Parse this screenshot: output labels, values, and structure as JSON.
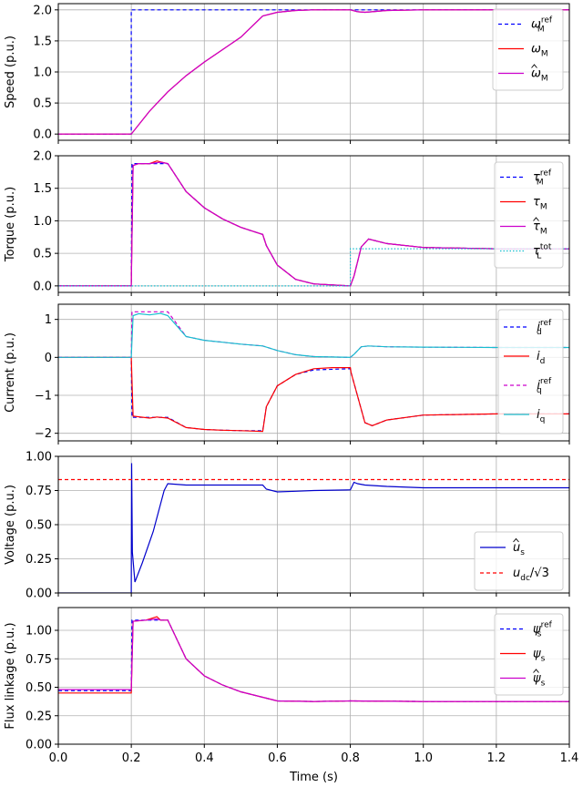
{
  "xlabel": "Time (s)",
  "x_ticks": [
    "0.0",
    "0.2",
    "0.4",
    "0.6",
    "0.8",
    "1.0",
    "1.2",
    "1.4"
  ],
  "chart_data": [
    {
      "type": "line",
      "ylabel": "Speed (p.u.)",
      "xlim": [
        0,
        1.4
      ],
      "ylim": [
        -0.1,
        2.1
      ],
      "y_ticks": [
        0.0,
        0.5,
        1.0,
        1.5,
        2.0
      ],
      "y_tick_labels": [
        "0.0",
        "0.5",
        "1.0",
        "1.5",
        "2.0"
      ],
      "legend": "right",
      "grid": true,
      "series": [
        {
          "name": "ω_M^ref",
          "label_main": "ω",
          "label_sub": "M",
          "label_sup": "ref",
          "hat": false,
          "color": "#0000ff",
          "dash": "4,3",
          "x": [
            0,
            0.2,
            0.2,
            1.4
          ],
          "y": [
            0,
            0,
            2.0,
            2.0
          ]
        },
        {
          "name": "ω_M",
          "label_main": "ω",
          "label_sub": "M",
          "label_sup": "",
          "hat": false,
          "color": "#ff0000",
          "dash": "",
          "x": [
            0,
            0.2,
            0.25,
            0.3,
            0.35,
            0.4,
            0.45,
            0.5,
            0.56,
            0.6,
            0.65,
            0.7,
            0.8,
            0.82,
            0.84,
            0.86,
            0.9,
            1.0,
            1.4
          ],
          "y": [
            0,
            0,
            0.37,
            0.68,
            0.94,
            1.16,
            1.36,
            1.56,
            1.9,
            1.96,
            1.99,
            2.0,
            2.0,
            1.97,
            1.96,
            1.97,
            1.99,
            2.0,
            2.0
          ]
        },
        {
          "name": "ω̂_M",
          "label_main": "ω",
          "label_sub": "M",
          "label_sup": "",
          "hat": true,
          "color": "#cc00cc",
          "dash": "",
          "x": [
            0,
            0.2,
            0.25,
            0.3,
            0.35,
            0.4,
            0.45,
            0.5,
            0.56,
            0.6,
            0.65,
            0.7,
            0.8,
            0.82,
            0.84,
            0.86,
            0.9,
            1.0,
            1.4
          ],
          "y": [
            0,
            0,
            0.37,
            0.68,
            0.94,
            1.16,
            1.36,
            1.56,
            1.9,
            1.96,
            1.99,
            2.0,
            2.0,
            1.97,
            1.96,
            1.97,
            1.99,
            2.0,
            2.0
          ]
        }
      ]
    },
    {
      "type": "line",
      "ylabel": "Torque (p.u.)",
      "xlim": [
        0,
        1.4
      ],
      "ylim": [
        -0.1,
        2.0
      ],
      "y_ticks": [
        0.0,
        0.5,
        1.0,
        1.5,
        2.0
      ],
      "y_tick_labels": [
        "0.0",
        "0.5",
        "1.0",
        "1.5",
        "2.0"
      ],
      "legend": "right",
      "grid": true,
      "series": [
        {
          "name": "τ_M^ref",
          "label_main": "τ",
          "label_sub": "M",
          "label_sup": "ref",
          "hat": false,
          "color": "#0000ff",
          "dash": "4,3",
          "x": [
            0,
            0.2,
            0.202,
            0.25,
            0.3,
            0.35,
            0.4,
            0.45,
            0.5,
            0.56,
            0.57,
            0.6,
            0.65,
            0.7,
            0.8,
            0.81,
            0.83,
            0.85,
            0.9,
            1.0,
            1.2,
            1.4
          ],
          "y": [
            0,
            0,
            1.88,
            1.88,
            1.88,
            1.45,
            1.2,
            1.03,
            0.9,
            0.79,
            0.62,
            0.32,
            0.1,
            0.03,
            0.0,
            0.15,
            0.6,
            0.72,
            0.65,
            0.59,
            0.57,
            0.57
          ]
        },
        {
          "name": "τ_M",
          "label_main": "τ",
          "label_sub": "M",
          "label_sup": "",
          "hat": false,
          "color": "#ff0000",
          "dash": "",
          "x": [
            0,
            0.2,
            0.205,
            0.22,
            0.25,
            0.27,
            0.3,
            0.35,
            0.4,
            0.45,
            0.5,
            0.56,
            0.57,
            0.6,
            0.65,
            0.7,
            0.8,
            0.81,
            0.83,
            0.85,
            0.9,
            1.0,
            1.2,
            1.4
          ],
          "y": [
            0,
            0,
            1.85,
            1.88,
            1.88,
            1.92,
            1.88,
            1.45,
            1.2,
            1.03,
            0.9,
            0.79,
            0.62,
            0.32,
            0.1,
            0.03,
            0.0,
            0.15,
            0.6,
            0.72,
            0.65,
            0.59,
            0.57,
            0.57
          ]
        },
        {
          "name": "τ̂_M",
          "label_main": "τ",
          "label_sub": "M",
          "label_sup": "",
          "hat": true,
          "color": "#cc00cc",
          "dash": "",
          "x": [
            0,
            0.2,
            0.205,
            0.22,
            0.25,
            0.28,
            0.3,
            0.35,
            0.4,
            0.45,
            0.5,
            0.56,
            0.57,
            0.6,
            0.65,
            0.7,
            0.8,
            0.81,
            0.83,
            0.85,
            0.9,
            1.0,
            1.2,
            1.4
          ],
          "y": [
            0,
            0,
            1.85,
            1.88,
            1.88,
            1.9,
            1.88,
            1.45,
            1.2,
            1.03,
            0.9,
            0.79,
            0.62,
            0.32,
            0.1,
            0.03,
            0.0,
            0.15,
            0.6,
            0.72,
            0.65,
            0.59,
            0.57,
            0.57
          ]
        },
        {
          "name": "τ_L^tot",
          "label_main": "τ",
          "label_sub": "L",
          "label_sup": "tot",
          "hat": false,
          "color": "#17becf",
          "dash": "1.5,2",
          "x": [
            0,
            0.8,
            0.8,
            1.4
          ],
          "y": [
            0,
            0,
            0.57,
            0.57
          ]
        }
      ]
    },
    {
      "type": "line",
      "ylabel": "Current (p.u.)",
      "xlim": [
        0,
        1.4
      ],
      "ylim": [
        -2.2,
        1.4
      ],
      "y_ticks": [
        -2,
        -1,
        0,
        1
      ],
      "y_tick_labels": [
        "−2",
        "−1",
        "0",
        "1"
      ],
      "legend": "right",
      "grid": true,
      "series": [
        {
          "name": "i_d^ref",
          "label_main": "i",
          "label_sub": "d",
          "label_sup": "ref",
          "hat": false,
          "color": "#0000ff",
          "dash": "4,3",
          "x": [
            0,
            0.2,
            0.202,
            0.3,
            0.35,
            0.4,
            0.45,
            0.5,
            0.56,
            0.57,
            0.6,
            0.65,
            0.7,
            0.8,
            0.802,
            0.84,
            0.86,
            0.9,
            1.0,
            1.2,
            1.4
          ],
          "y": [
            0,
            0,
            -1.58,
            -1.58,
            -1.85,
            -1.9,
            -1.92,
            -1.93,
            -1.93,
            -1.3,
            -0.75,
            -0.45,
            -0.33,
            -0.3,
            -0.4,
            -1.72,
            -1.8,
            -1.65,
            -1.52,
            -1.49,
            -1.49
          ]
        },
        {
          "name": "i_d",
          "label_main": "i",
          "label_sub": "d",
          "label_sup": "",
          "hat": false,
          "color": "#ff0000",
          "dash": "",
          "x": [
            0,
            0.2,
            0.205,
            0.25,
            0.27,
            0.3,
            0.35,
            0.4,
            0.45,
            0.5,
            0.56,
            0.57,
            0.6,
            0.65,
            0.7,
            0.75,
            0.8,
            0.802,
            0.84,
            0.86,
            0.9,
            1.0,
            1.2,
            1.4
          ],
          "y": [
            0,
            0,
            -1.55,
            -1.6,
            -1.57,
            -1.6,
            -1.85,
            -1.9,
            -1.92,
            -1.93,
            -1.95,
            -1.3,
            -0.75,
            -0.45,
            -0.3,
            -0.27,
            -0.27,
            -0.4,
            -1.72,
            -1.8,
            -1.65,
            -1.52,
            -1.49,
            -1.49
          ]
        },
        {
          "name": "i_q^ref",
          "label_main": "i",
          "label_sub": "q",
          "label_sup": "ref",
          "hat": false,
          "color": "#cc00cc",
          "dash": "4,3",
          "x": [
            0,
            0.2,
            0.202,
            0.3,
            0.35,
            0.4,
            0.45,
            0.5,
            0.56,
            0.6,
            0.65,
            0.7,
            0.8,
            0.81,
            0.83,
            0.85,
            0.9,
            1.0,
            1.2,
            1.4
          ],
          "y": [
            0,
            0,
            1.2,
            1.2,
            0.55,
            0.45,
            0.4,
            0.35,
            0.3,
            0.18,
            0.07,
            0.02,
            0.0,
            0.08,
            0.28,
            0.3,
            0.28,
            0.27,
            0.26,
            0.26
          ]
        },
        {
          "name": "i_q",
          "label_main": "i",
          "label_sub": "q",
          "label_sup": "",
          "hat": false,
          "color": "#17becf",
          "dash": "",
          "x": [
            0,
            0.2,
            0.205,
            0.22,
            0.25,
            0.28,
            0.3,
            0.35,
            0.4,
            0.45,
            0.5,
            0.56,
            0.6,
            0.65,
            0.7,
            0.8,
            0.81,
            0.83,
            0.85,
            0.9,
            1.0,
            1.2,
            1.4
          ],
          "y": [
            0,
            0,
            1.1,
            1.15,
            1.12,
            1.16,
            1.1,
            0.55,
            0.45,
            0.4,
            0.35,
            0.3,
            0.18,
            0.07,
            0.02,
            0.0,
            0.08,
            0.28,
            0.3,
            0.28,
            0.27,
            0.26,
            0.26
          ]
        }
      ]
    },
    {
      "type": "line",
      "ylabel": "Voltage (p.u.)",
      "xlim": [
        0,
        1.4
      ],
      "ylim": [
        0.0,
        1.0
      ],
      "y_ticks": [
        0.0,
        0.25,
        0.5,
        0.75,
        1.0
      ],
      "y_tick_labels": [
        "0.00",
        "0.25",
        "0.50",
        "0.75",
        "1.00"
      ],
      "legend": "lower-right",
      "grid": true,
      "series": [
        {
          "name": "û_s",
          "label_main": "u",
          "label_sub": "s",
          "label_sup": "",
          "hat": true,
          "color": "#0000cc",
          "dash": "",
          "x": [
            0,
            0.2,
            0.201,
            0.203,
            0.21,
            0.23,
            0.26,
            0.29,
            0.3,
            0.35,
            0.4,
            0.5,
            0.56,
            0.57,
            0.6,
            0.65,
            0.7,
            0.8,
            0.81,
            0.82,
            0.84,
            0.9,
            1.0,
            1.2,
            1.4
          ],
          "y": [
            0,
            0,
            0.95,
            0.3,
            0.08,
            0.22,
            0.45,
            0.75,
            0.8,
            0.79,
            0.79,
            0.79,
            0.79,
            0.76,
            0.74,
            0.745,
            0.75,
            0.755,
            0.81,
            0.8,
            0.79,
            0.78,
            0.77,
            0.77,
            0.77
          ]
        },
        {
          "name": "u_dc/√3",
          "label_main": "u",
          "label_sub": "dc",
          "label_sup": "",
          "hat": false,
          "suffix": "/√3",
          "color": "#ff0000",
          "dash": "4,3",
          "x": [
            0,
            1.4
          ],
          "y": [
            0.83,
            0.83
          ]
        }
      ]
    },
    {
      "type": "line",
      "ylabel": "Flux linkage (p.u.)",
      "xlim": [
        0,
        1.4
      ],
      "ylim": [
        0.0,
        1.2
      ],
      "y_ticks": [
        0.0,
        0.25,
        0.5,
        0.75,
        1.0
      ],
      "y_tick_labels": [
        "0.00",
        "0.25",
        "0.50",
        "0.75",
        "1.00"
      ],
      "legend": "right",
      "grid": true,
      "series": [
        {
          "name": "ψ_s^ref",
          "label_main": "ψ",
          "label_sub": "s",
          "label_sup": "ref",
          "hat": false,
          "color": "#0000ff",
          "dash": "4,3",
          "x": [
            0,
            0.2,
            0.202,
            0.3,
            0.35,
            0.4,
            0.45,
            0.5,
            0.55,
            0.6,
            0.7,
            0.8,
            1.0,
            1.4
          ],
          "y": [
            0.47,
            0.47,
            1.09,
            1.09,
            0.75,
            0.6,
            0.52,
            0.46,
            0.42,
            0.38,
            0.375,
            0.38,
            0.375,
            0.375
          ]
        },
        {
          "name": "ψ_s",
          "label_main": "ψ",
          "label_sub": "s",
          "label_sup": "",
          "hat": false,
          "color": "#ff0000",
          "dash": "",
          "x": [
            0,
            0.2,
            0.205,
            0.24,
            0.27,
            0.28,
            0.3,
            0.35,
            0.4,
            0.45,
            0.5,
            0.55,
            0.6,
            0.7,
            0.8,
            1.0,
            1.4
          ],
          "y": [
            0.45,
            0.45,
            1.08,
            1.09,
            1.12,
            1.09,
            1.09,
            0.75,
            0.6,
            0.52,
            0.46,
            0.42,
            0.38,
            0.375,
            0.38,
            0.375,
            0.375
          ]
        },
        {
          "name": "ψ̂_s",
          "label_main": "ψ",
          "label_sub": "s",
          "label_sup": "",
          "hat": true,
          "color": "#cc00cc",
          "dash": "",
          "x": [
            0,
            0.2,
            0.205,
            0.24,
            0.27,
            0.28,
            0.3,
            0.35,
            0.4,
            0.45,
            0.5,
            0.55,
            0.6,
            0.7,
            0.8,
            1.0,
            1.4
          ],
          "y": [
            0.48,
            0.48,
            1.08,
            1.09,
            1.1,
            1.09,
            1.09,
            0.75,
            0.6,
            0.52,
            0.46,
            0.42,
            0.38,
            0.375,
            0.38,
            0.375,
            0.375
          ]
        }
      ]
    }
  ]
}
